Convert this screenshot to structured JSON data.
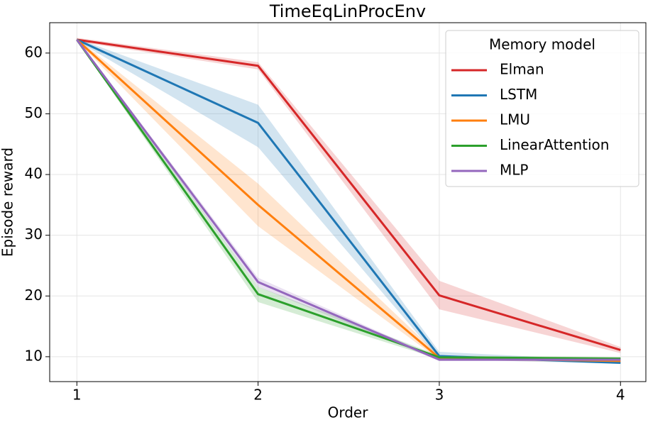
{
  "chart_data": {
    "type": "line",
    "title": "TimeEqLinProcEnv",
    "x_label": "Order",
    "y_label": "Episode reward",
    "x": [
      1,
      2,
      3,
      4
    ],
    "xlim": [
      0.85,
      4.14
    ],
    "xticks": [
      1,
      2,
      3,
      4
    ],
    "ylim": [
      5.9,
      65.0
    ],
    "yticks": [
      10,
      20,
      30,
      40,
      50,
      60
    ],
    "grid": true,
    "legend_title": "Memory model",
    "legend_position": "upper right",
    "series": [
      {
        "name": "Elman",
        "color": "#d62728",
        "values": [
          62.2,
          57.9,
          20.1,
          11.1
        ],
        "lower": [
          61.9,
          57.3,
          17.8,
          10.6
        ],
        "upper": [
          62.5,
          58.5,
          22.5,
          11.6
        ]
      },
      {
        "name": "LSTM",
        "color": "#1f77b4",
        "values": [
          62.2,
          48.5,
          10.1,
          9.0
        ],
        "lower": [
          62.0,
          44.5,
          9.6,
          8.8
        ],
        "upper": [
          62.4,
          51.5,
          10.8,
          9.3
        ]
      },
      {
        "name": "LMU",
        "color": "#ff7f0e",
        "values": [
          62.2,
          35.0,
          9.8,
          9.3
        ],
        "lower": [
          62.0,
          31.5,
          9.5,
          9.0
        ],
        "upper": [
          62.4,
          38.5,
          10.2,
          9.6
        ]
      },
      {
        "name": "LinearAttention",
        "color": "#2ca02c",
        "values": [
          62.2,
          20.3,
          9.9,
          9.7
        ],
        "lower": [
          62.0,
          19.0,
          9.6,
          9.5
        ],
        "upper": [
          62.4,
          21.5,
          10.2,
          9.9
        ]
      },
      {
        "name": "MLP",
        "color": "#9467bd",
        "values": [
          62.2,
          22.3,
          9.5,
          9.5
        ],
        "lower": [
          62.0,
          21.5,
          9.3,
          9.3
        ],
        "upper": [
          62.4,
          23.0,
          9.7,
          9.7
        ]
      }
    ]
  }
}
